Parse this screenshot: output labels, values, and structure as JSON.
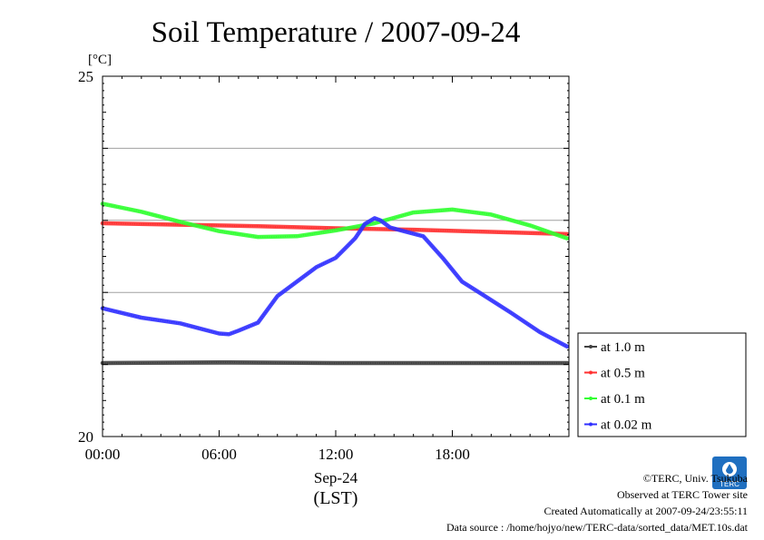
{
  "chart_data": {
    "type": "line",
    "title": "Soil Temperature / 2007-09-24",
    "ylabel": "[°C]",
    "xlabel": "Sep-24",
    "xlabel2": "(LST)",
    "ylim": [
      20,
      25
    ],
    "xlim": [
      0,
      24
    ],
    "y_tick_labels": [
      {
        "value": 25,
        "label": "25"
      },
      {
        "value": 20,
        "label": "20"
      }
    ],
    "y_gridlines": [
      21,
      22,
      23,
      24
    ],
    "x_ticks": [
      {
        "value": 0,
        "label": "00:00"
      },
      {
        "value": 6,
        "label": "06:00"
      },
      {
        "value": 12,
        "label": "12:00"
      },
      {
        "value": 18,
        "label": "18:00"
      }
    ],
    "legend_position": "right",
    "series": [
      {
        "name": "at 1.0 m",
        "color": "#404040",
        "x": [
          0,
          6,
          12,
          18,
          23.9
        ],
        "y": [
          21.02,
          21.03,
          21.02,
          21.02,
          21.02
        ]
      },
      {
        "name": "at 0.5 m",
        "color": "#ff3030",
        "x": [
          0,
          4,
          8,
          12,
          16,
          20,
          23.9
        ],
        "y": [
          22.96,
          22.94,
          22.92,
          22.89,
          22.87,
          22.84,
          22.81
        ]
      },
      {
        "name": "at 0.1 m",
        "color": "#30ff30",
        "x": [
          0,
          2,
          4,
          6,
          8,
          10,
          12,
          14,
          16,
          18,
          20,
          22,
          23.9
        ],
        "y": [
          23.23,
          23.12,
          22.98,
          22.85,
          22.77,
          22.78,
          22.86,
          22.96,
          23.11,
          23.15,
          23.08,
          22.93,
          22.75
        ]
      },
      {
        "name": "at 0.02 m",
        "color": "#3030ff",
        "x": [
          0,
          2,
          4,
          5,
          6,
          6.5,
          7,
          8,
          9,
          10,
          11,
          12,
          13,
          13.5,
          14,
          14.3,
          14.8,
          15.5,
          16.5,
          17.5,
          18.5,
          19.5,
          21,
          22.5,
          23.9
        ],
        "y": [
          21.78,
          21.65,
          21.57,
          21.5,
          21.43,
          21.42,
          21.47,
          21.58,
          21.95,
          22.15,
          22.35,
          22.48,
          22.75,
          22.95,
          23.03,
          23.0,
          22.9,
          22.85,
          22.78,
          22.48,
          22.15,
          21.98,
          21.72,
          21.45,
          21.25
        ]
      }
    ]
  },
  "footer": {
    "copyright": "©TERC, Univ. Tsukuba",
    "observed": "Observed at TERC Tower site",
    "created": "Created Automatically at 2007-09-24/23:55:11",
    "source": "Data source : /home/hojyo/new/TERC-data/sorted_data/MET.10s.dat"
  },
  "logo": {
    "text": "TERC",
    "color": "#1f6fc0"
  }
}
